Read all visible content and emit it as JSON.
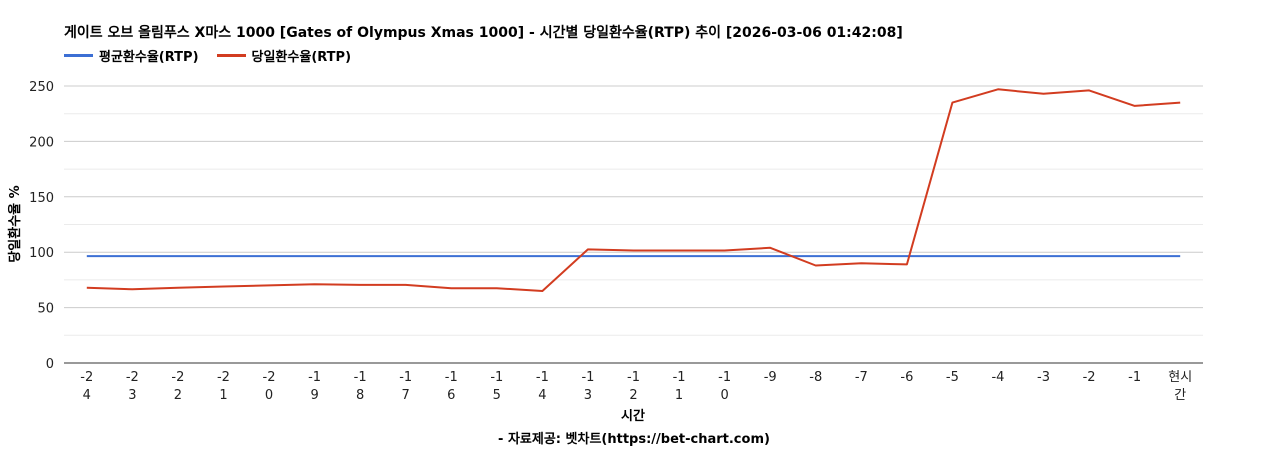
{
  "chart_data": {
    "type": "line",
    "title": "게이트 오브 올림푸스 X마스 1000 [Gates of Olympus Xmas 1000] - 시간별 당일환수율(RTP) 추이 [2026-03-06 01:42:08]",
    "xlabel": "시간",
    "ylabel": "당일환수율 %",
    "source": "- 자료제공: 벳차트(https://bet-chart.com)",
    "ylim": [
      0,
      250
    ],
    "yticks": [
      0,
      50,
      100,
      150,
      200,
      250
    ],
    "grid": true,
    "legend_position": "top-left",
    "categories": [
      "-24",
      "-23",
      "-22",
      "-21",
      "-20",
      "-19",
      "-18",
      "-17",
      "-16",
      "-15",
      "-14",
      "-13",
      "-12",
      "-11",
      "-10",
      "-9",
      "-8",
      "-7",
      "-6",
      "-5",
      "-4",
      "-3",
      "-2",
      "-1",
      "현시간"
    ],
    "series": [
      {
        "name": "평균환수율(RTP)",
        "color": "#3c6fd4",
        "values": [
          96.5,
          96.5,
          96.5,
          96.5,
          96.5,
          96.5,
          96.5,
          96.5,
          96.5,
          96.5,
          96.5,
          96.5,
          96.5,
          96.5,
          96.5,
          96.5,
          96.5,
          96.5,
          96.5,
          96.5,
          96.5,
          96.5,
          96.5,
          96.5,
          96.5
        ]
      },
      {
        "name": "당일환수율(RTP)",
        "color": "#d23c20",
        "values": [
          68,
          66.5,
          68,
          69,
          70,
          71,
          70.5,
          70.5,
          67.5,
          67.5,
          65,
          102.5,
          101.5,
          101.5,
          101.5,
          104,
          88,
          90,
          89,
          235,
          247,
          243,
          246,
          232,
          235
        ]
      }
    ]
  }
}
